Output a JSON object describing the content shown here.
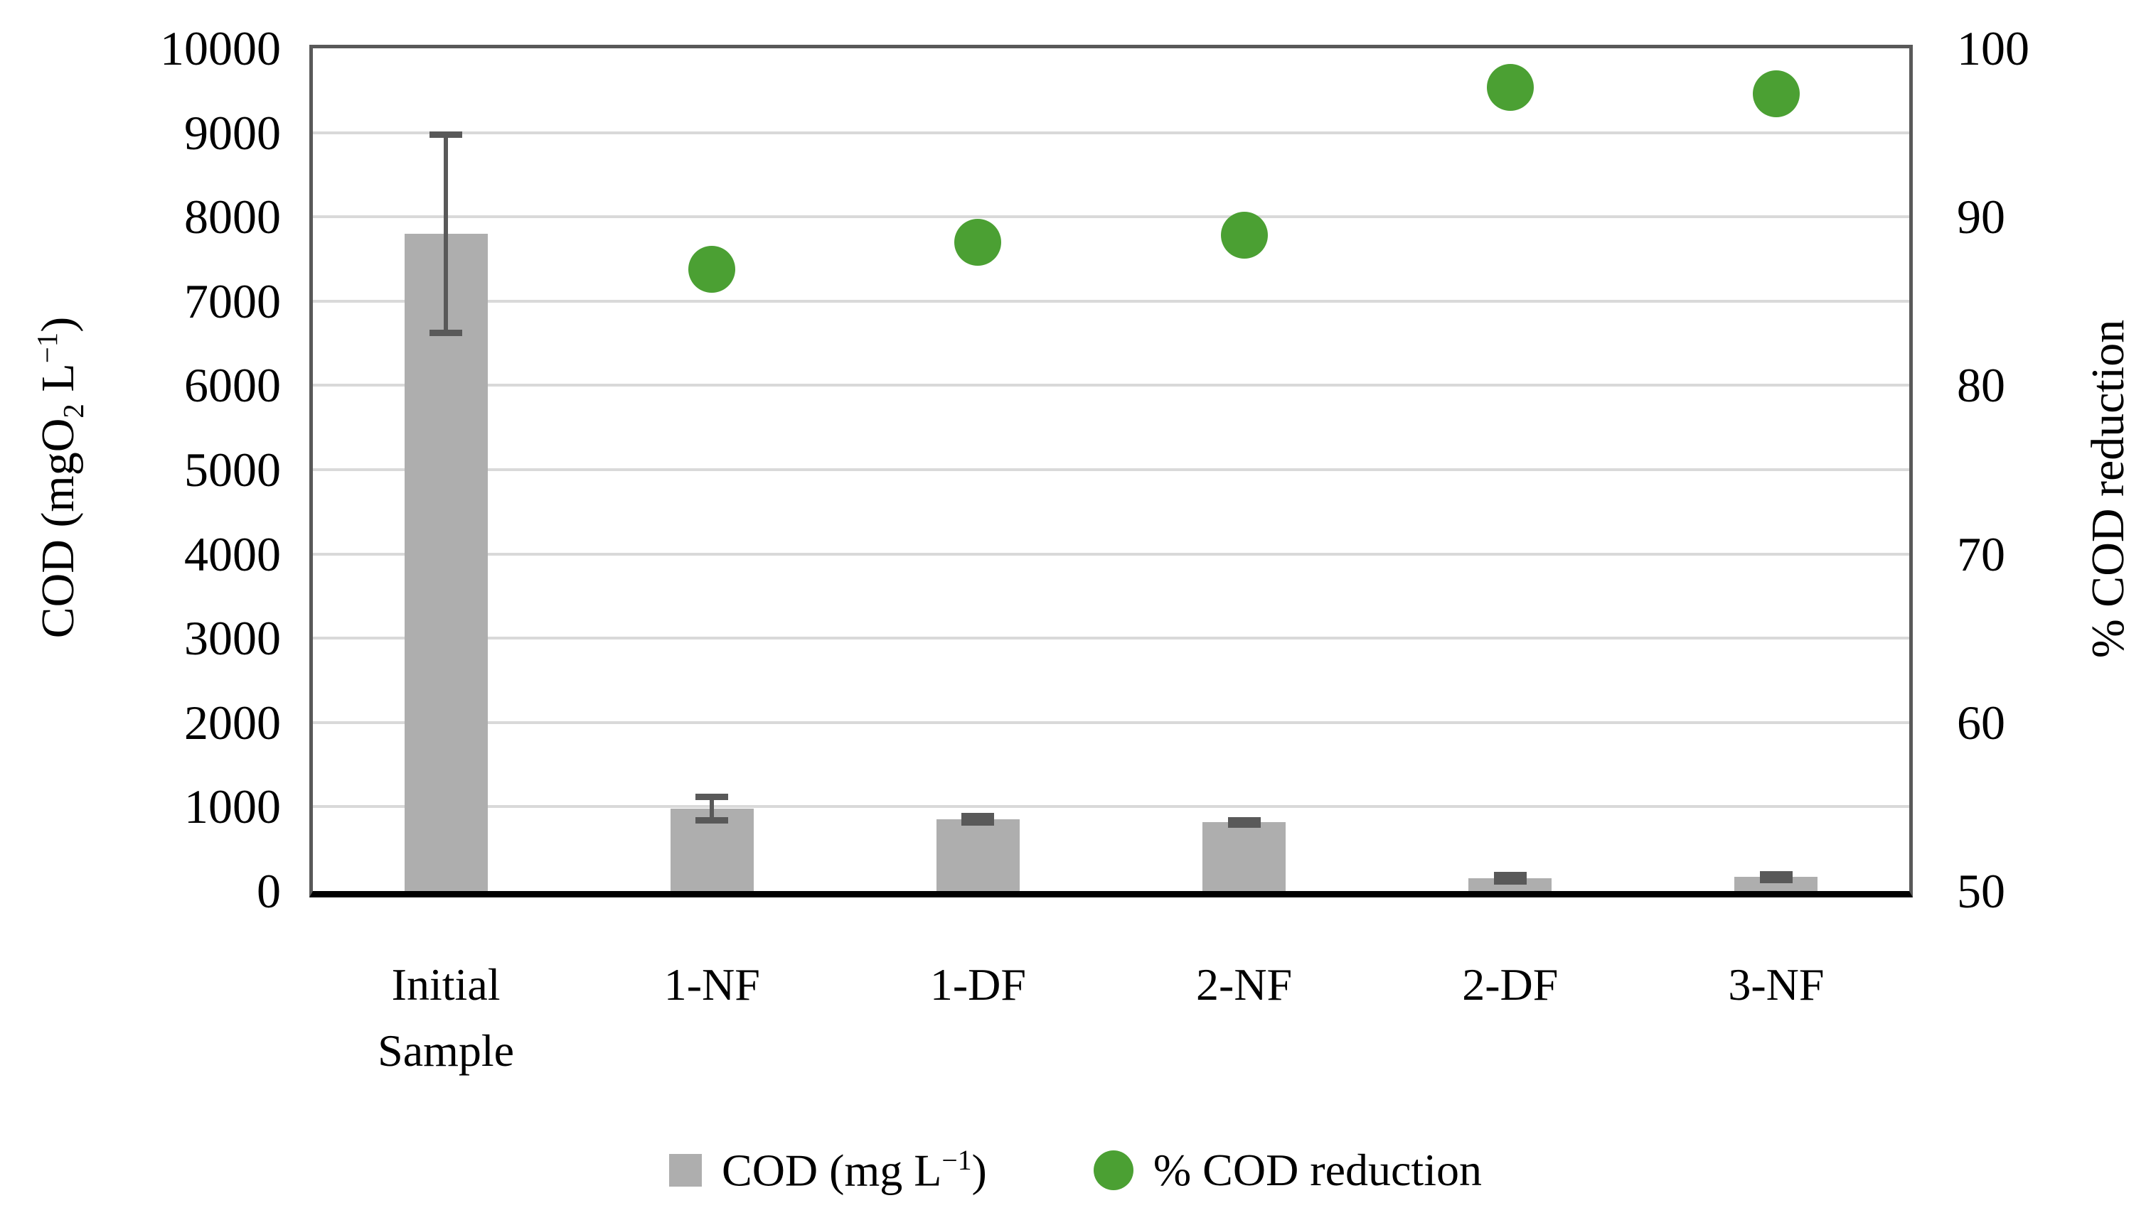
{
  "chart_data": {
    "type": "combo-bar-scatter",
    "categories": [
      "Initial Sample",
      "1-NF",
      "1-DF",
      "2-NF",
      "2-DF",
      "3-NF"
    ],
    "left_axis": {
      "min": 0,
      "max": 10000,
      "step": 1000,
      "ticks": [
        0,
        1000,
        2000,
        3000,
        4000,
        5000,
        6000,
        7000,
        8000,
        9000,
        10000
      ],
      "title": {
        "pre": "COD (mgO",
        "sub": "2",
        "mid": " L",
        "sup": "−1",
        "post": ")"
      }
    },
    "right_axis": {
      "min": 50,
      "max": 100,
      "step": 10,
      "ticks": [
        50,
        60,
        70,
        80,
        90,
        100
      ],
      "title": "% COD reduction"
    },
    "bar_series": {
      "name": "COD (mg L-1)",
      "label": {
        "pre": "COD (mg L",
        "sup": "−1",
        "post": ")"
      },
      "color": "#aeaeae",
      "error_color": "#595959",
      "values": [
        7800,
        980,
        850,
        815,
        150,
        165
      ],
      "errors": [
        1200,
        160,
        60,
        45,
        60,
        55
      ]
    },
    "dot_series": {
      "name": "% COD reduction",
      "color": "#4ba033",
      "values": [
        null,
        86.9,
        88.5,
        88.9,
        97.7,
        97.3
      ]
    },
    "grid": {
      "on": true,
      "color": "#d9d9d9"
    },
    "legend_position": "bottom",
    "axis_border_color": "#595959",
    "baseline_color": "#000000"
  }
}
